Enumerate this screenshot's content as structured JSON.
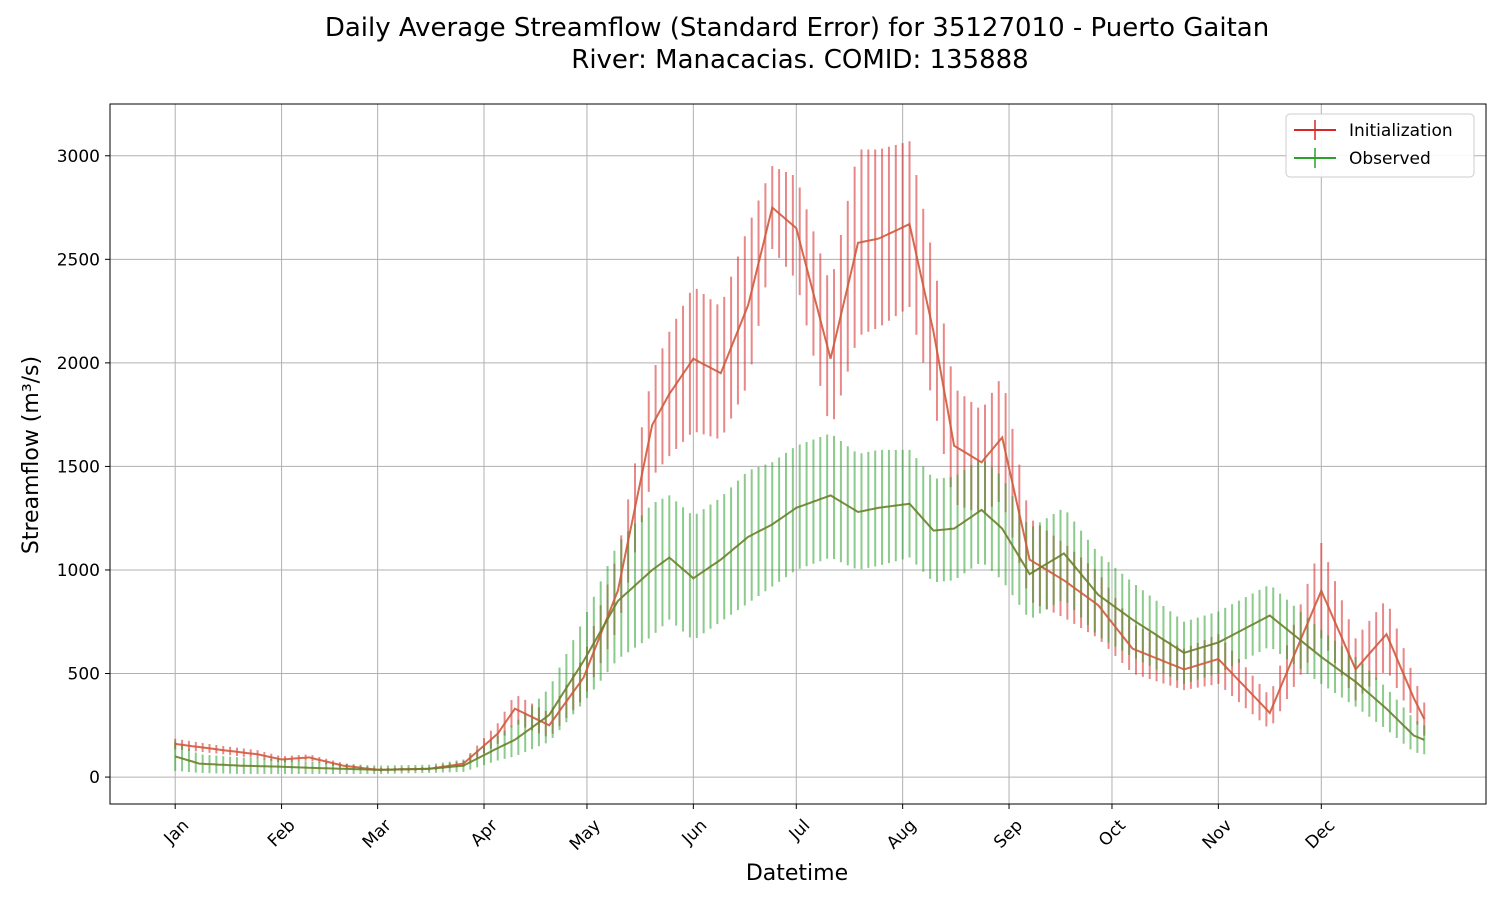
{
  "chart_data": {
    "type": "line",
    "title": "Daily Average Streamflow (Standard Error) for 35127010 - Puerto Gaitan",
    "subtitle": "River: Manacacias. COMID: 135888",
    "xlabel": "Datetime",
    "ylabel": "Streamflow (m³/s)",
    "x_ticks": [
      "Jan",
      "Feb",
      "Mar",
      "Apr",
      "May",
      "Jun",
      "Jul",
      "Aug",
      "Sep",
      "Oct",
      "Nov",
      "Dec"
    ],
    "y_ticks": [
      0,
      500,
      1000,
      1500,
      2000,
      2500,
      3000
    ],
    "ylim": [
      -130,
      3250
    ],
    "xlim_day": [
      -18,
      383
    ],
    "grid": true,
    "legend_position": "top-right",
    "error_bars": "standard error",
    "series": [
      {
        "name": "Initialization",
        "color": "#d62728",
        "x_day": [
          1,
          15,
          25,
          32,
          40,
          50,
          60,
          75,
          85,
          95,
          100,
          110,
          120,
          130,
          140,
          145,
          152,
          160,
          168,
          175,
          182,
          192,
          200,
          206,
          215,
          222,
          228,
          236,
          242,
          250,
          260,
          270,
          280,
          295,
          305,
          320,
          335,
          345,
          354,
          362,
          365
        ],
        "y": [
          160,
          130,
          110,
          85,
          95,
          55,
          35,
          40,
          65,
          210,
          330,
          250,
          480,
          900,
          1700,
          1850,
          2020,
          1950,
          2280,
          2750,
          2650,
          2020,
          2580,
          2600,
          2670,
          2150,
          1600,
          1520,
          1640,
          1050,
          950,
          830,
          620,
          520,
          570,
          310,
          900,
          520,
          690,
          380,
          280
        ],
        "err": [
          25,
          20,
          20,
          15,
          15,
          12,
          8,
          8,
          15,
          50,
          70,
          60,
          100,
          180,
          250,
          300,
          350,
          320,
          380,
          200,
          250,
          350,
          450,
          430,
          400,
          350,
          280,
          250,
          300,
          200,
          180,
          160,
          120,
          100,
          120,
          80,
          230,
          150,
          170,
          100,
          80
        ]
      },
      {
        "name": "Observed",
        "color": "#2ca02c",
        "x_day": [
          1,
          8,
          20,
          32,
          40,
          50,
          60,
          75,
          85,
          95,
          100,
          110,
          120,
          130,
          140,
          145,
          152,
          160,
          168,
          175,
          182,
          192,
          200,
          206,
          215,
          222,
          228,
          236,
          242,
          250,
          260,
          270,
          280,
          295,
          305,
          320,
          335,
          345,
          354,
          362,
          365
        ],
        "y": [
          100,
          65,
          55,
          50,
          45,
          40,
          35,
          40,
          55,
          140,
          180,
          300,
          560,
          850,
          1000,
          1060,
          960,
          1050,
          1160,
          1220,
          1300,
          1360,
          1280,
          1300,
          1320,
          1190,
          1200,
          1290,
          1200,
          980,
          1080,
          880,
          760,
          600,
          650,
          780,
          580,
          460,
          330,
          200,
          180
        ]
      }
    ],
    "observed_err": [
      70,
      45,
      40,
      35,
      30,
      25,
      20,
      20,
      30,
      60,
      80,
      130,
      200,
      280,
      320,
      300,
      300,
      300,
      320,
      300,
      300,
      300,
      280,
      280,
      260,
      250,
      250,
      250,
      250,
      220,
      220,
      200,
      180,
      150,
      150,
      150,
      130,
      120,
      100,
      80,
      70
    ]
  }
}
